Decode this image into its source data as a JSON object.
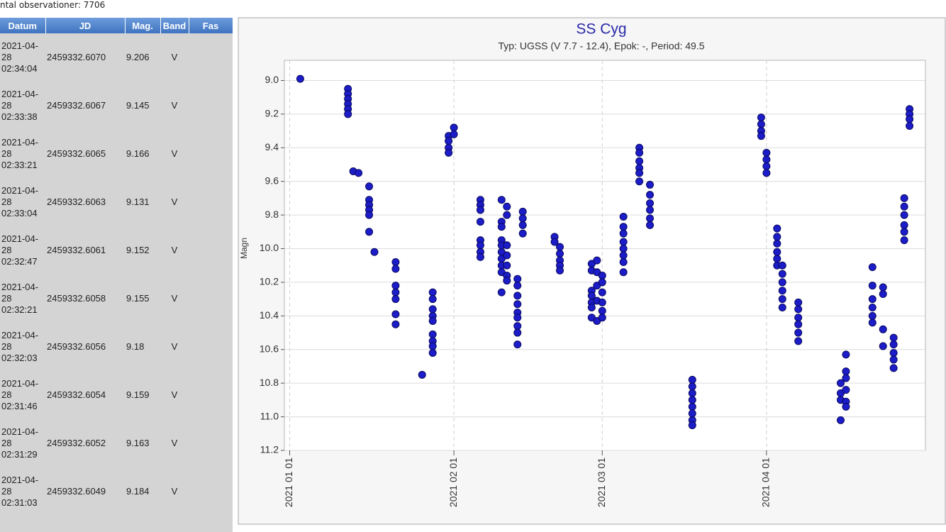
{
  "page": {
    "count_text": "ntal observationer: 7706"
  },
  "table": {
    "headers": [
      "Datum",
      "JD",
      "Mag.",
      "Band",
      "Fas"
    ],
    "rows": [
      [
        "2021-04-28 02:34:04",
        "2459332.6070",
        "9.206",
        "V"
      ],
      [
        "2021-04-28 02:33:38",
        "2459332.6067",
        "9.145",
        "V"
      ],
      [
        "2021-04-28 02:33:21",
        "2459332.6065",
        "9.166",
        "V"
      ],
      [
        "2021-04-28 02:33:04",
        "2459332.6063",
        "9.131",
        "V"
      ],
      [
        "2021-04-28 02:32:47",
        "2459332.6061",
        "9.152",
        "V"
      ],
      [
        "2021-04-28 02:32:21",
        "2459332.6058",
        "9.155",
        "V"
      ],
      [
        "2021-04-28 02:32:03",
        "2459332.6056",
        "9.18",
        "V"
      ],
      [
        "2021-04-28 02:31:46",
        "2459332.6054",
        "9.159",
        "V"
      ],
      [
        "2021-04-28 02:31:29",
        "2459332.6052",
        "9.163",
        "V"
      ],
      [
        "2021-04-28 02:31:03",
        "2459332.6049",
        "9.184",
        "V"
      ]
    ]
  },
  "chart_data": {
    "type": "scatter",
    "title": "SS Cyg",
    "subtitle": "Typ: UGSS (V 7.7 - 12.4), Epok: -, Period: 49.5",
    "y_label": "Magn",
    "xlim": [
      "2020-12-31",
      "2021-05-01"
    ],
    "xticks": [
      {
        "value": "2021-01-01",
        "label": "2021 01 01"
      },
      {
        "value": "2021-02-01",
        "label": "2021 02 01"
      },
      {
        "value": "2021-03-01",
        "label": "2021 03 01"
      },
      {
        "value": "2021-04-01",
        "label": "2021 04 01"
      }
    ],
    "ylim": [
      11.2,
      8.88
    ],
    "yticks": [
      {
        "value": 9,
        "label": "9.0"
      },
      9.2,
      9.4,
      9.6,
      9.8,
      {
        "value": 10,
        "label": "10.0"
      },
      10.2,
      10.4,
      10.6,
      10.8,
      {
        "value": 11,
        "label": "11.0"
      },
      11.2
    ],
    "grid": true,
    "series": [
      {
        "color": "#1c1cc8",
        "x": [
          "2021-01-03",
          "2021-01-12",
          "2021-01-12",
          "2021-01-12",
          "2021-01-12",
          "2021-01-12",
          "2021-01-12",
          "2021-01-13",
          "2021-01-14",
          "2021-01-16",
          "2021-01-16",
          "2021-01-16",
          "2021-01-16",
          "2021-01-16",
          "2021-01-16",
          "2021-01-17",
          "2021-01-21",
          "2021-01-21",
          "2021-01-21",
          "2021-01-21",
          "2021-01-21",
          "2021-01-21",
          "2021-01-21",
          "2021-01-26",
          "2021-01-28",
          "2021-01-28",
          "2021-01-28",
          "2021-01-28",
          "2021-01-28",
          "2021-01-28",
          "2021-01-28",
          "2021-01-28",
          "2021-01-28",
          "2021-01-31",
          "2021-01-31",
          "2021-01-31",
          "2021-01-31",
          "2021-02-01",
          "2021-02-01",
          "2021-02-06",
          "2021-02-06",
          "2021-02-06",
          "2021-02-06",
          "2021-02-06",
          "2021-02-06",
          "2021-02-06",
          "2021-02-06",
          "2021-02-10",
          "2021-02-10",
          "2021-02-10",
          "2021-02-10",
          "2021-02-10",
          "2021-02-10",
          "2021-02-10",
          "2021-02-10",
          "2021-02-10",
          "2021-02-10",
          "2021-02-11",
          "2021-02-11",
          "2021-02-11",
          "2021-02-11",
          "2021-02-11",
          "2021-02-11",
          "2021-02-11",
          "2021-02-13",
          "2021-02-13",
          "2021-02-13",
          "2021-02-13",
          "2021-02-13",
          "2021-02-13",
          "2021-02-13",
          "2021-02-13",
          "2021-02-13",
          "2021-02-14",
          "2021-02-14",
          "2021-02-14",
          "2021-02-14",
          "2021-02-20",
          "2021-02-20",
          "2021-02-21",
          "2021-02-21",
          "2021-02-21",
          "2021-02-21",
          "2021-02-21",
          "2021-02-27",
          "2021-02-27",
          "2021-02-27",
          "2021-02-27",
          "2021-02-27",
          "2021-02-27",
          "2021-02-27",
          "2021-02-28",
          "2021-02-28",
          "2021-02-28",
          "2021-02-28",
          "2021-02-28",
          "2021-03-01",
          "2021-03-01",
          "2021-03-01",
          "2021-03-01",
          "2021-03-01",
          "2021-03-01",
          "2021-03-05",
          "2021-03-05",
          "2021-03-05",
          "2021-03-05",
          "2021-03-05",
          "2021-03-05",
          "2021-03-05",
          "2021-03-05",
          "2021-03-08",
          "2021-03-08",
          "2021-03-08",
          "2021-03-08",
          "2021-03-08",
          "2021-03-08",
          "2021-03-10",
          "2021-03-10",
          "2021-03-10",
          "2021-03-10",
          "2021-03-10",
          "2021-03-10",
          "2021-03-18",
          "2021-03-18",
          "2021-03-18",
          "2021-03-18",
          "2021-03-18",
          "2021-03-18",
          "2021-03-18",
          "2021-03-18",
          "2021-03-31",
          "2021-03-31",
          "2021-03-31",
          "2021-03-31",
          "2021-04-01",
          "2021-04-01",
          "2021-04-01",
          "2021-04-01",
          "2021-04-03",
          "2021-04-03",
          "2021-04-03",
          "2021-04-03",
          "2021-04-03",
          "2021-04-03",
          "2021-04-04",
          "2021-04-04",
          "2021-04-04",
          "2021-04-04",
          "2021-04-04",
          "2021-04-04",
          "2021-04-07",
          "2021-04-07",
          "2021-04-07",
          "2021-04-07",
          "2021-04-07",
          "2021-04-07",
          "2021-04-15",
          "2021-04-15",
          "2021-04-15",
          "2021-04-15",
          "2021-04-16",
          "2021-04-16",
          "2021-04-16",
          "2021-04-16",
          "2021-04-16",
          "2021-04-16",
          "2021-04-21",
          "2021-04-21",
          "2021-04-21",
          "2021-04-21",
          "2021-04-21",
          "2021-04-21",
          "2021-04-23",
          "2021-04-23",
          "2021-04-23",
          "2021-04-23",
          "2021-04-25",
          "2021-04-25",
          "2021-04-25",
          "2021-04-25",
          "2021-04-25",
          "2021-04-27",
          "2021-04-27",
          "2021-04-27",
          "2021-04-27",
          "2021-04-27",
          "2021-04-27",
          "2021-04-28",
          "2021-04-28",
          "2021-04-28",
          "2021-04-28"
        ],
        "values": [
          8.99,
          9.05,
          9.08,
          9.11,
          9.14,
          9.17,
          9.2,
          9.54,
          9.55,
          9.63,
          9.71,
          9.74,
          9.77,
          9.8,
          9.9,
          10.02,
          10.08,
          10.12,
          10.22,
          10.26,
          10.3,
          10.39,
          10.45,
          10.75,
          10.26,
          10.3,
          10.36,
          10.4,
          10.43,
          10.51,
          10.55,
          10.58,
          10.62,
          9.33,
          9.36,
          9.4,
          9.43,
          9.28,
          9.32,
          9.71,
          9.74,
          9.77,
          9.84,
          9.95,
          9.98,
          10.02,
          10.05,
          9.71,
          9.84,
          9.87,
          9.95,
          9.98,
          10.02,
          10.06,
          10.1,
          10.14,
          10.26,
          9.75,
          9.8,
          9.98,
          10.04,
          10.1,
          10.16,
          10.19,
          10.18,
          10.22,
          10.28,
          10.33,
          10.38,
          10.41,
          10.46,
          10.5,
          10.57,
          9.78,
          9.82,
          9.86,
          9.91,
          9.93,
          9.96,
          9.99,
          10.03,
          10.07,
          10.1,
          10.13,
          10.09,
          10.13,
          10.25,
          10.28,
          10.32,
          10.35,
          10.41,
          10.07,
          10.14,
          10.22,
          10.31,
          10.43,
          10.16,
          10.2,
          10.26,
          10.32,
          10.37,
          10.41,
          9.81,
          9.87,
          9.91,
          9.96,
          10.0,
          10.04,
          10.08,
          10.14,
          9.4,
          9.43,
          9.48,
          9.52,
          9.55,
          9.6,
          9.62,
          9.68,
          9.73,
          9.77,
          9.82,
          9.86,
          10.78,
          10.82,
          10.86,
          10.9,
          10.94,
          10.98,
          11.02,
          11.05,
          9.22,
          9.26,
          9.3,
          9.33,
          9.43,
          9.47,
          9.51,
          9.55,
          9.88,
          9.93,
          9.97,
          10.02,
          10.06,
          10.1,
          10.1,
          10.15,
          10.2,
          10.25,
          10.3,
          10.35,
          10.32,
          10.36,
          10.41,
          10.45,
          10.5,
          10.55,
          10.8,
          10.86,
          10.9,
          11.02,
          10.63,
          10.73,
          10.77,
          10.84,
          10.91,
          10.94,
          10.11,
          10.22,
          10.3,
          10.35,
          10.4,
          10.44,
          10.23,
          10.27,
          10.48,
          10.58,
          10.53,
          10.57,
          10.62,
          10.66,
          10.71,
          9.7,
          9.75,
          9.8,
          9.86,
          9.9,
          9.95,
          9.17,
          9.2,
          9.23,
          9.27
        ]
      }
    ]
  }
}
